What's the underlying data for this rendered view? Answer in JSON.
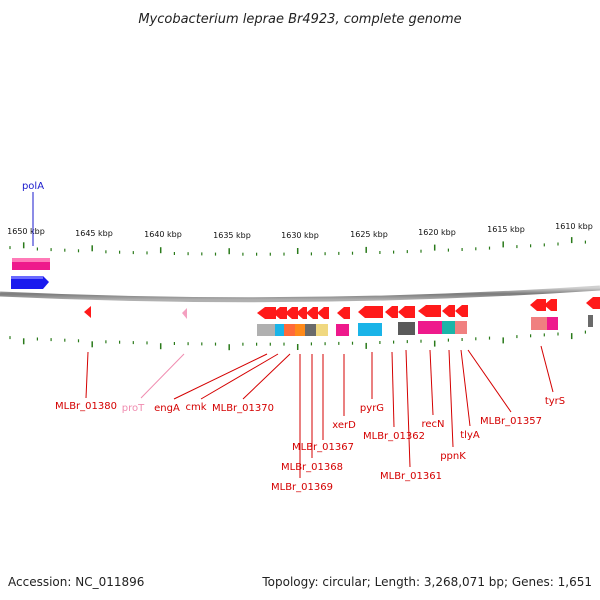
{
  "title": "Mycobacterium leprae Br4923, complete genome",
  "accession": "Accession: NC_011896",
  "topology": "Topology: circular; Length: 3,268,071 bp; Genes: 1,651",
  "colors": {
    "backbone": "#8a8a8a",
    "tick": "#2a7a1a",
    "label_red": "#d40000",
    "label_pink": "#f08cb0",
    "label_blue": "#1a1acc",
    "gene_red": "#ff1a1a",
    "gene_magenta": "#ee1a8c",
    "gene_blue": "#1a1aee",
    "gene_cyan": "#1ab4e8",
    "gene_gray": "#5a5a5a"
  },
  "ticks": {
    "labels": [
      "1650 kbp",
      "1645 kbp",
      "1640 kbp",
      "1635 kbp",
      "1630 kbp",
      "1625 kbp",
      "1620 kbp",
      "1615 kbp",
      "1610 kbp"
    ]
  },
  "genes": [
    {
      "label": "polA",
      "color": "blue"
    },
    {
      "label": "MLBr_01380",
      "color": "red"
    },
    {
      "label": "proT",
      "color": "pink"
    },
    {
      "label": "engA",
      "color": "red"
    },
    {
      "label": "cmk",
      "color": "red"
    },
    {
      "label": "MLBr_01370",
      "color": "red"
    },
    {
      "label": "MLBr_01367",
      "color": "red"
    },
    {
      "label": "MLBr_01368",
      "color": "red"
    },
    {
      "label": "MLBr_01369",
      "color": "red"
    },
    {
      "label": "xerD",
      "color": "red"
    },
    {
      "label": "pyrG",
      "color": "red"
    },
    {
      "label": "MLBr_01362",
      "color": "red"
    },
    {
      "label": "MLBr_01361",
      "color": "red"
    },
    {
      "label": "recN",
      "color": "red"
    },
    {
      "label": "ppnK",
      "color": "red"
    },
    {
      "label": "tlyA",
      "color": "red"
    },
    {
      "label": "MLBr_01357",
      "color": "red"
    },
    {
      "label": "tyrS",
      "color": "red"
    }
  ]
}
